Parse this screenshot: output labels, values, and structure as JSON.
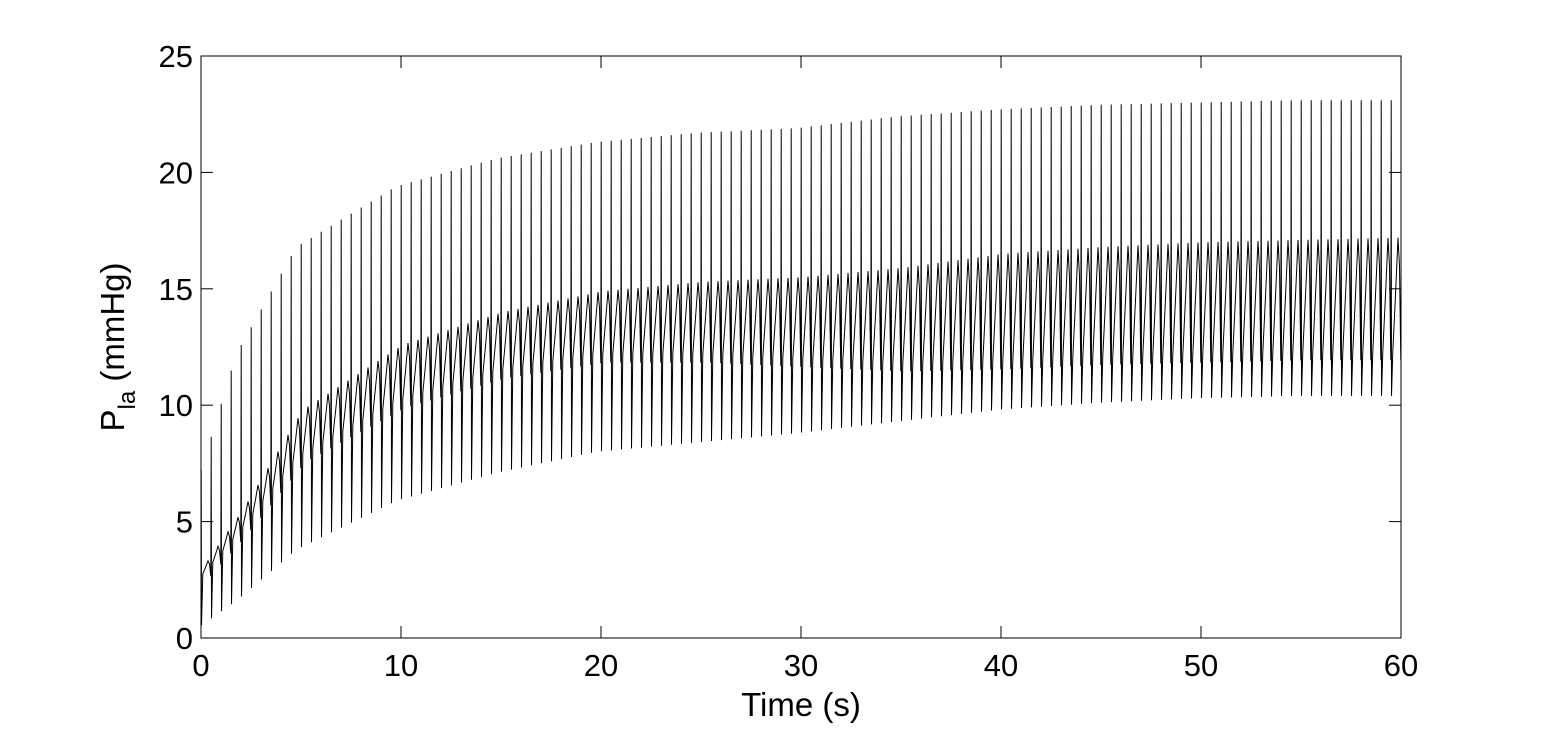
{
  "chart_data": {
    "type": "line",
    "title": "",
    "xlabel": "Time (s)",
    "ylabel": {
      "base": "P",
      "subscript": "la",
      "suffix": " (mmHg)"
    },
    "xlim": [
      0,
      60
    ],
    "ylim": [
      0,
      25
    ],
    "x_ticks": [
      0,
      10,
      20,
      30,
      40,
      50,
      60
    ],
    "y_ticks": [
      0,
      5,
      10,
      15,
      20,
      25
    ],
    "grid": false,
    "legend": "none",
    "line_color": "#000000",
    "series": [
      {
        "beat_period_s": 0.5,
        "beats": 120,
        "envelope": {
          "time_s": [
            0,
            2,
            5,
            10,
            15,
            20,
            25,
            30,
            35,
            40,
            45,
            50,
            55,
            60
          ],
          "peak_max": [
            6.5,
            12.2,
            16.8,
            19.4,
            20.6,
            21.3,
            21.7,
            21.9,
            22.4,
            22.7,
            22.9,
            23.0,
            23.1,
            23.1
          ],
          "secondary_max": [
            3.0,
            5.5,
            9.8,
            12.6,
            14.0,
            14.9,
            15.3,
            15.5,
            15.9,
            16.5,
            16.8,
            17.0,
            17.1,
            17.2
          ],
          "secondary_min": [
            2.5,
            4.5,
            7.8,
            10.2,
            11.5,
            12.2,
            12.2,
            12.0,
            11.8,
            11.9,
            12.1,
            12.2,
            12.3,
            12.3
          ],
          "trough_min": [
            0.4,
            1.6,
            3.8,
            5.9,
            7.1,
            8.0,
            8.4,
            8.8,
            9.3,
            9.8,
            10.1,
            10.3,
            10.4,
            10.4
          ]
        }
      }
    ]
  }
}
